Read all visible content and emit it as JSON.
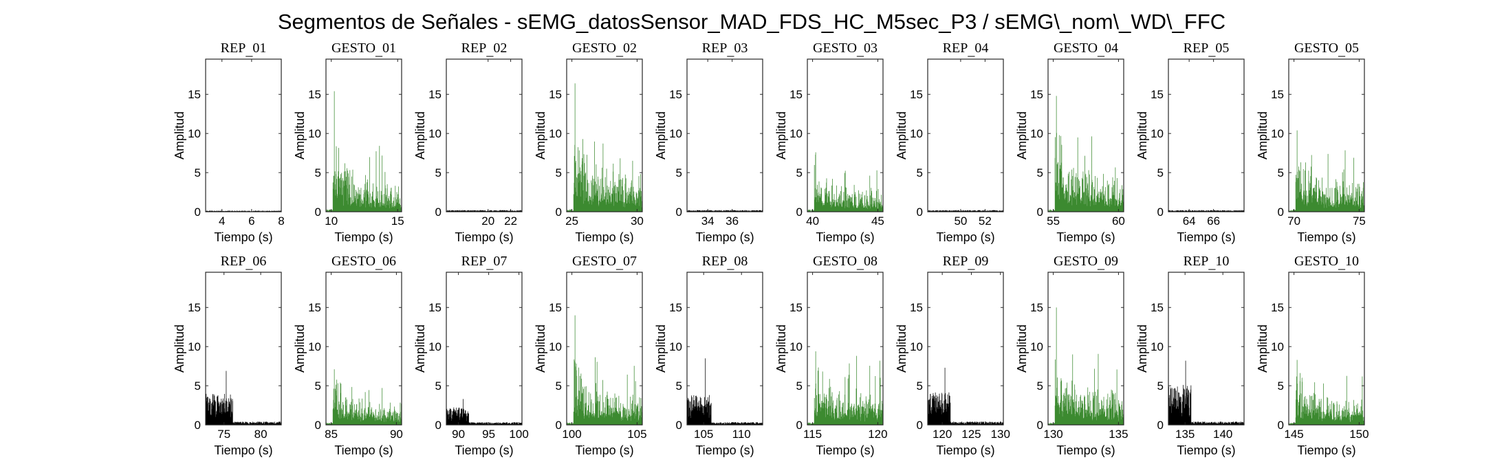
{
  "chart_data": {
    "type": "area",
    "title": "Segmentos de Señales - sEMG_datosSensor_MAD_FDS_HC_M5sec_P3 / sEMG\\_nom\\_WD\\_FFC",
    "xlabel": "Tiempo (s)",
    "ylabel": "Amplitud",
    "ylim": [
      0,
      19.5
    ],
    "yticks": [
      0,
      5,
      10,
      15
    ],
    "grid": false,
    "colors": {
      "rep": "#000000",
      "gesto": "#3c8a30"
    },
    "panels": [
      {
        "title": "REP_01",
        "kind": "rep",
        "xlim": [
          2.9,
          8.0
        ],
        "xticks": [
          4,
          6,
          8
        ],
        "active_end": 2.9,
        "peak": 0.25,
        "level": 0.1,
        "rest": 0.1
      },
      {
        "title": "GESTO_01",
        "kind": "gesto",
        "xlim": [
          9.6,
          15.3
        ],
        "xticks": [
          10,
          15
        ],
        "peak": 15.4,
        "level": 2.5,
        "rest": 0.3
      },
      {
        "title": "REP_02",
        "kind": "rep",
        "xlim": [
          16.3,
          23.0
        ],
        "xticks": [
          20,
          22
        ],
        "active_end": 16.3,
        "peak": 0.3,
        "level": 0.15,
        "rest": 0.15
      },
      {
        "title": "GESTO_02",
        "kind": "gesto",
        "xlim": [
          24.6,
          30.4
        ],
        "xticks": [
          25,
          30
        ],
        "peak": 16.4,
        "level": 3.0,
        "rest": 0.3
      },
      {
        "title": "REP_03",
        "kind": "rep",
        "xlim": [
          32.3,
          38.5
        ],
        "xticks": [
          34,
          36
        ],
        "active_end": 32.3,
        "peak": 0.3,
        "level": 0.15,
        "rest": 0.15
      },
      {
        "title": "GESTO_03",
        "kind": "gesto",
        "xlim": [
          39.6,
          45.4
        ],
        "xticks": [
          40,
          45
        ],
        "peak": 7.6,
        "level": 1.8,
        "rest": 0.3
      },
      {
        "title": "REP_04",
        "kind": "rep",
        "xlim": [
          47.3,
          53.5
        ],
        "xticks": [
          50,
          52
        ],
        "active_end": 47.3,
        "peak": 0.35,
        "level": 0.15,
        "rest": 0.15
      },
      {
        "title": "GESTO_04",
        "kind": "gesto",
        "xlim": [
          54.6,
          60.4
        ],
        "xticks": [
          55,
          60
        ],
        "peak": 14.8,
        "level": 3.0,
        "rest": 0.3
      },
      {
        "title": "REP_05",
        "kind": "rep",
        "xlim": [
          62.3,
          68.5
        ],
        "xticks": [
          64,
          66
        ],
        "active_end": 62.3,
        "peak": 0.4,
        "level": 0.15,
        "rest": 0.15
      },
      {
        "title": "GESTO_05",
        "kind": "gesto",
        "xlim": [
          69.6,
          75.4
        ],
        "xticks": [
          70,
          75
        ],
        "peak": 10.4,
        "level": 2.4,
        "rest": 0.3
      },
      {
        "title": "REP_06",
        "kind": "rep",
        "xlim": [
          72.5,
          82.8
        ],
        "xticks": [
          75,
          80
        ],
        "active_end": 76.2,
        "peak": 6.9,
        "level": 2.5,
        "rest": 0.3
      },
      {
        "title": "GESTO_06",
        "kind": "gesto",
        "xlim": [
          84.6,
          90.4
        ],
        "xticks": [
          85,
          90
        ],
        "peak": 7.1,
        "level": 1.9,
        "rest": 0.3
      },
      {
        "title": "REP_07",
        "kind": "rep",
        "xlim": [
          88.0,
          100.5
        ],
        "xticks": [
          90,
          95,
          100
        ],
        "active_end": 91.7,
        "peak": 3.3,
        "level": 1.4,
        "rest": 0.25
      },
      {
        "title": "GESTO_07",
        "kind": "gesto",
        "xlim": [
          99.6,
          105.4
        ],
        "xticks": [
          100,
          105
        ],
        "peak": 14.0,
        "level": 2.6,
        "rest": 0.3
      },
      {
        "title": "REP_08",
        "kind": "rep",
        "xlim": [
          102.8,
          112.8
        ],
        "xticks": [
          105,
          110
        ],
        "active_end": 106.0,
        "peak": 8.5,
        "level": 2.4,
        "rest": 0.25
      },
      {
        "title": "GESTO_08",
        "kind": "gesto",
        "xlim": [
          114.6,
          120.4
        ],
        "xticks": [
          115,
          120
        ],
        "peak": 9.4,
        "level": 2.6,
        "rest": 0.3
      },
      {
        "title": "REP_09",
        "kind": "rep",
        "xlim": [
          117.5,
          130.5
        ],
        "xticks": [
          120,
          125,
          130
        ],
        "active_end": 121.4,
        "peak": 7.3,
        "level": 2.6,
        "rest": 0.3
      },
      {
        "title": "GESTO_09",
        "kind": "gesto",
        "xlim": [
          129.6,
          135.4
        ],
        "xticks": [
          130,
          135
        ],
        "peak": 15.0,
        "level": 3.0,
        "rest": 0.3
      },
      {
        "title": "REP_10",
        "kind": "rep",
        "xlim": [
          132.8,
          142.8
        ],
        "xticks": [
          135,
          140
        ],
        "active_end": 135.8,
        "peak": 8.2,
        "level": 3.2,
        "rest": 0.3
      },
      {
        "title": "GESTO_10",
        "kind": "gesto",
        "xlim": [
          144.6,
          150.4
        ],
        "xticks": [
          145,
          150
        ],
        "peak": 8.3,
        "level": 2.0,
        "rest": 0.3
      }
    ]
  }
}
